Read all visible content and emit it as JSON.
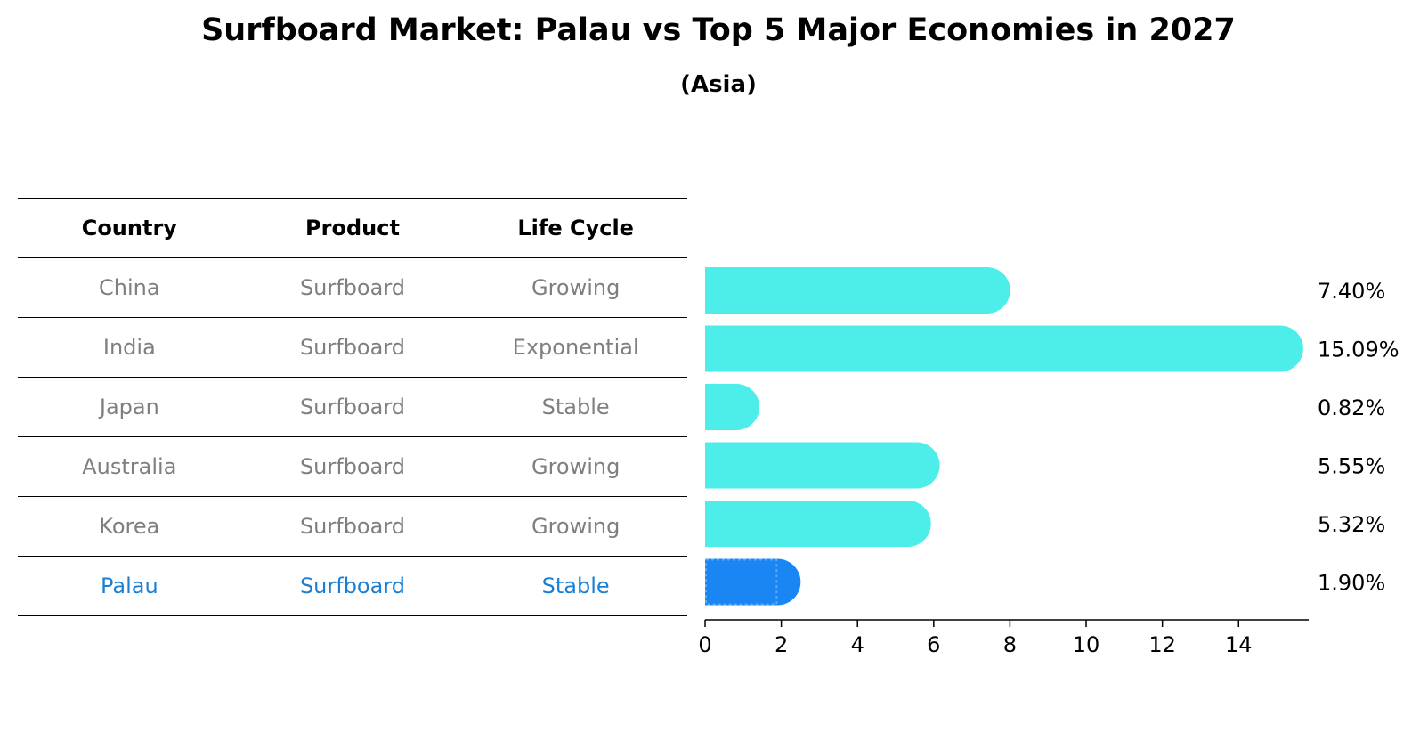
{
  "chart_data": {
    "type": "bar",
    "orientation": "horizontal",
    "title": "Surfboard Market: Palau vs Top 5 Major Economies in 2027",
    "subtitle": "(Asia)",
    "categories": [
      "China",
      "India",
      "Japan",
      "Australia",
      "Korea",
      "Palau"
    ],
    "values": [
      7.4,
      15.09,
      0.82,
      5.55,
      5.32,
      1.9
    ],
    "value_labels": [
      "7.40%",
      "15.09%",
      "0.82%",
      "5.55%",
      "5.32%",
      "1.90%"
    ],
    "highlight_category": "Palau",
    "xlim": [
      0,
      15.84
    ],
    "xticks": [
      0,
      2,
      4,
      6,
      8,
      10,
      12,
      14
    ],
    "xtick_labels": [
      "0",
      "2",
      "4",
      "6",
      "8",
      "10",
      "12",
      "14"
    ],
    "xlabel": "",
    "ylabel": "",
    "grid": false,
    "colors": {
      "default": "#4deee9",
      "highlight": "#1a86f3"
    }
  },
  "table": {
    "headers": [
      "Country",
      "Product",
      "Life Cycle"
    ],
    "rows": [
      {
        "country": "China",
        "product": "Surfboard",
        "life_cycle": "Growing"
      },
      {
        "country": "India",
        "product": "Surfboard",
        "life_cycle": "Exponential"
      },
      {
        "country": "Japan",
        "product": "Surfboard",
        "life_cycle": "Stable"
      },
      {
        "country": "Australia",
        "product": "Surfboard",
        "life_cycle": "Growing"
      },
      {
        "country": "Korea",
        "product": "Surfboard",
        "life_cycle": "Growing"
      },
      {
        "country": "Palau",
        "product": "Surfboard",
        "life_cycle": "Stable"
      }
    ]
  }
}
